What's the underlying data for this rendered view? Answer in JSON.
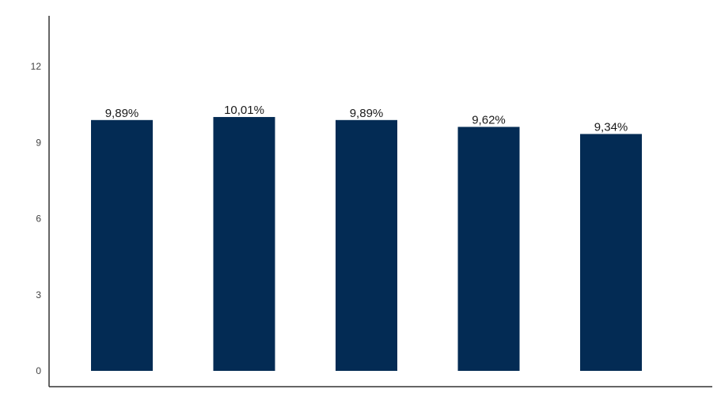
{
  "chart_data": {
    "type": "bar",
    "title": "",
    "xlabel": "",
    "ylabel": "",
    "categories": [
      "",
      "",
      "",
      "",
      ""
    ],
    "values": [
      9.89,
      10.01,
      9.89,
      9.62,
      9.34
    ],
    "data_labels": [
      "9,89%",
      "10,01%",
      "9,89%",
      "9,62%",
      "9,34%"
    ],
    "ylim": [
      0,
      14
    ],
    "yticks": [
      0,
      3,
      6,
      9,
      12
    ],
    "ytick_labels": [
      "0",
      "3",
      "6",
      "9",
      "12"
    ],
    "grid": false,
    "legend": "none",
    "bar_color": "#032b54"
  }
}
